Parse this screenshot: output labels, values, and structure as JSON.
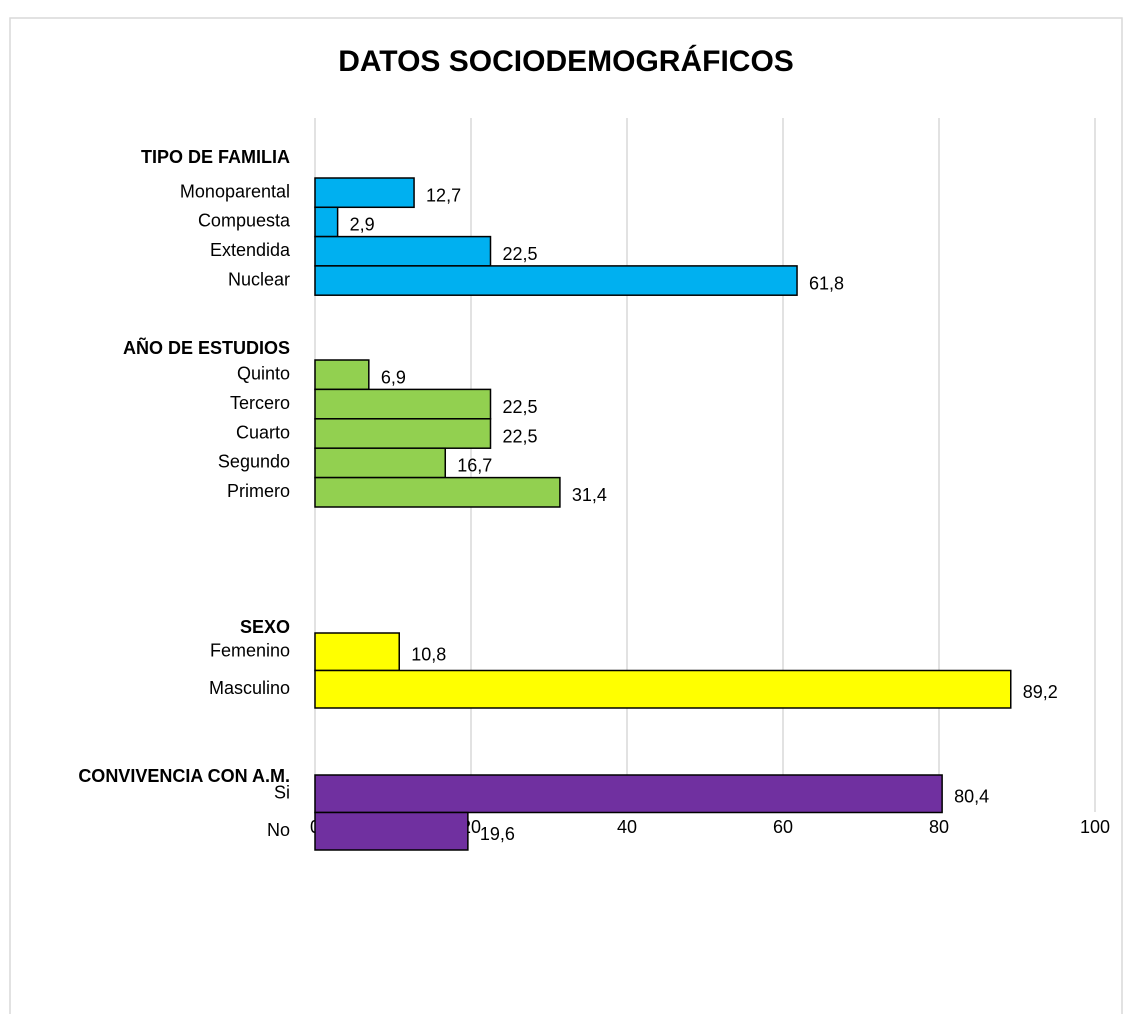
{
  "chart_data": {
    "type": "bar",
    "orientation": "horizontal",
    "title": "DATOS SOCIODEMOGRÁFICOS",
    "groups": [
      {
        "name": "TIPO DE FAMILIA",
        "color": "#00b0f0",
        "categories": [
          "Monoparental",
          "Compuesta",
          "Extendida",
          "Nuclear"
        ],
        "values": [
          12.7,
          2.9,
          22.5,
          61.8
        ],
        "value_labels": [
          "12,7",
          "2,9",
          "22,5",
          "61,8"
        ]
      },
      {
        "name": "AÑO DE ESTUDIOS",
        "color": "#92d050",
        "categories": [
          "Quinto",
          "Tercero",
          "Cuarto",
          "Segundo",
          "Primero"
        ],
        "values": [
          6.9,
          22.5,
          22.5,
          16.7,
          31.4
        ],
        "value_labels": [
          "6,9",
          "22,5",
          "22,5",
          "16,7",
          "31,4"
        ]
      },
      {
        "name": "SEXO",
        "color": "#ffff00",
        "categories": [
          "Femenino",
          "Masculino"
        ],
        "values": [
          10.8,
          89.2
        ],
        "value_labels": [
          "10,8",
          "89,2"
        ]
      },
      {
        "name": "CONVIVENCIA CON A.M.",
        "color": "#7030a0",
        "categories": [
          "Si",
          "No"
        ],
        "values": [
          80.4,
          19.6
        ],
        "value_labels": [
          "80,4",
          "19,6"
        ]
      }
    ],
    "xlim": [
      0,
      100
    ],
    "xticks": [
      0,
      20,
      40,
      60,
      80,
      100
    ],
    "grid": true
  }
}
